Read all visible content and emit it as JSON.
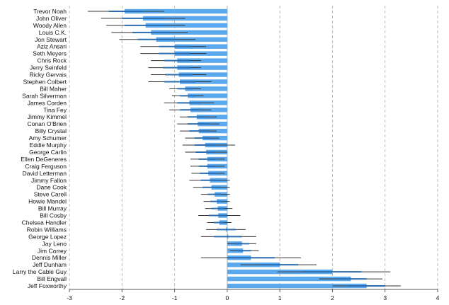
{
  "chart_data": {
    "type": "bar",
    "orientation": "horizontal",
    "title": "",
    "xlabel": "",
    "ylabel": "",
    "xlim": [
      -3,
      4
    ],
    "xticks": [
      -3,
      -2,
      -1,
      0,
      1,
      2,
      3,
      4
    ],
    "grid": true,
    "bar_color": "#5aa9ee",
    "inner_bar_color": "#2b6cb0",
    "error_color": "#333333",
    "categories": [
      "Trevor Noah",
      "John Oliver",
      "Woody Allen",
      "Louis C.K.",
      "Jon Stewart",
      "Aziz Ansari",
      "Seth Meyers",
      "Chris Rock",
      "Jerry Seinfeld",
      "Ricky Gervais",
      "Stephen Colbert",
      "Bill Maher",
      "Sarah Silverman",
      "James Corden",
      "Tina Fey",
      "Jimmy Kimmel",
      "Conan O'Brien",
      "Billy Crystal",
      "Amy Schumer",
      "Eddie Murphy",
      "George Carlin",
      "Ellen DeGeneres",
      "Craig Ferguson",
      "David Letterman",
      "Jimmy Fallon",
      "Dane Cook",
      "Steve Carell",
      "Howie Mandel",
      "Bill Murray",
      "Bill Cosby",
      "Chelsea Handler",
      "Robin Williams",
      "George Lopez",
      "Jay Leno",
      "Jim Carrey",
      "Dennis Miller",
      "Jeff Dunham",
      "Larry the Cable Guy",
      "Bill Engvall",
      "Jeff Foxworthy"
    ],
    "values": [
      -1.95,
      -1.6,
      -1.55,
      -1.45,
      -1.35,
      -1.0,
      -1.0,
      -0.95,
      -0.95,
      -0.92,
      -0.9,
      -0.8,
      -0.75,
      -0.72,
      -0.7,
      -0.58,
      -0.56,
      -0.54,
      -0.47,
      -0.42,
      -0.4,
      -0.38,
      -0.38,
      -0.36,
      -0.33,
      -0.3,
      -0.24,
      -0.2,
      -0.18,
      -0.17,
      -0.15,
      -0.02,
      0.02,
      0.28,
      0.3,
      0.45,
      1.0,
      2.0,
      2.35,
      2.65
    ],
    "ci_outer": [
      [
        -2.65,
        -1.2
      ],
      [
        -2.4,
        -0.8
      ],
      [
        -2.3,
        -0.8
      ],
      [
        -2.2,
        -0.75
      ],
      [
        -2.05,
        -0.6
      ],
      [
        -1.65,
        -0.4
      ],
      [
        -1.65,
        -0.4
      ],
      [
        -1.45,
        -0.5
      ],
      [
        -1.5,
        -0.5
      ],
      [
        -1.45,
        -0.4
      ],
      [
        -1.5,
        -0.3
      ],
      [
        -1.1,
        -0.5
      ],
      [
        -1.05,
        -0.45
      ],
      [
        -1.2,
        -0.25
      ],
      [
        -1.1,
        -0.3
      ],
      [
        -0.9,
        -0.2
      ],
      [
        -0.95,
        -0.15
      ],
      [
        -0.9,
        -0.2
      ],
      [
        -0.8,
        -0.15
      ],
      [
        -0.85,
        0.15
      ],
      [
        -0.8,
        0.0
      ],
      [
        -0.7,
        -0.05
      ],
      [
        -0.7,
        -0.05
      ],
      [
        -0.68,
        -0.05
      ],
      [
        -0.72,
        0.05
      ],
      [
        -0.65,
        0.05
      ],
      [
        -0.5,
        0.05
      ],
      [
        -0.45,
        0.05
      ],
      [
        -0.42,
        0.1
      ],
      [
        -0.55,
        0.25
      ],
      [
        -0.38,
        0.08
      ],
      [
        -0.4,
        0.35
      ],
      [
        -0.5,
        0.55
      ],
      [
        0.0,
        0.55
      ],
      [
        0.05,
        0.6
      ],
      [
        -0.5,
        1.4
      ],
      [
        0.25,
        1.7
      ],
      [
        0.95,
        3.1
      ],
      [
        1.75,
        2.95
      ],
      [
        2.0,
        3.3
      ]
    ],
    "ci_inner": [
      [
        -2.25,
        -1.6
      ],
      [
        -2.0,
        -1.2
      ],
      [
        -1.95,
        -1.15
      ],
      [
        -1.8,
        -1.1
      ],
      [
        -1.7,
        -1.0
      ],
      [
        -1.3,
        -0.7
      ],
      [
        -1.3,
        -0.7
      ],
      [
        -1.2,
        -0.7
      ],
      [
        -1.22,
        -0.7
      ],
      [
        -1.18,
        -0.65
      ],
      [
        -1.2,
        -0.6
      ],
      [
        -0.95,
        -0.65
      ],
      [
        -0.9,
        -0.6
      ],
      [
        -0.95,
        -0.5
      ],
      [
        -0.9,
        -0.5
      ],
      [
        -0.75,
        -0.4
      ],
      [
        -0.75,
        -0.35
      ],
      [
        -0.72,
        -0.36
      ],
      [
        -0.62,
        -0.32
      ],
      [
        -0.62,
        -0.22
      ],
      [
        -0.6,
        -0.2
      ],
      [
        -0.54,
        -0.22
      ],
      [
        -0.54,
        -0.22
      ],
      [
        -0.52,
        -0.2
      ],
      [
        -0.5,
        -0.16
      ],
      [
        -0.47,
        -0.13
      ],
      [
        -0.37,
        -0.11
      ],
      [
        -0.32,
        -0.08
      ],
      [
        -0.3,
        -0.06
      ],
      [
        -0.35,
        0.0
      ],
      [
        -0.26,
        -0.04
      ],
      [
        -0.2,
        0.16
      ],
      [
        -0.25,
        0.28
      ],
      [
        0.13,
        0.42
      ],
      [
        0.16,
        0.45
      ],
      [
        0.0,
        0.9
      ],
      [
        0.6,
        1.35
      ],
      [
        1.45,
        2.55
      ],
      [
        2.05,
        2.65
      ],
      [
        2.3,
        3.0
      ]
    ]
  }
}
